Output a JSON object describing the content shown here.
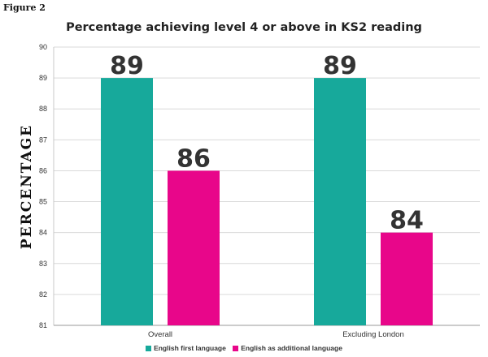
{
  "figure_label": "Figure 2",
  "colors": {
    "series1": "#17A99B",
    "series2": "#E8068A",
    "grid": "#d9d9d9"
  },
  "chart_data": {
    "type": "bar",
    "title": "Percentage achieving level 4 or above in KS2 reading",
    "ylabel": "PERCENTAGE",
    "xlabel": "",
    "ylim": [
      81,
      90
    ],
    "yticks": [
      81,
      82,
      83,
      84,
      85,
      86,
      87,
      88,
      89,
      90
    ],
    "grid": true,
    "legend_position": "bottom",
    "categories": [
      "Overall",
      "Excluding London"
    ],
    "series": [
      {
        "name": "English first language",
        "values": [
          89,
          89
        ]
      },
      {
        "name": "English as additional language",
        "values": [
          86,
          84
        ]
      }
    ]
  }
}
